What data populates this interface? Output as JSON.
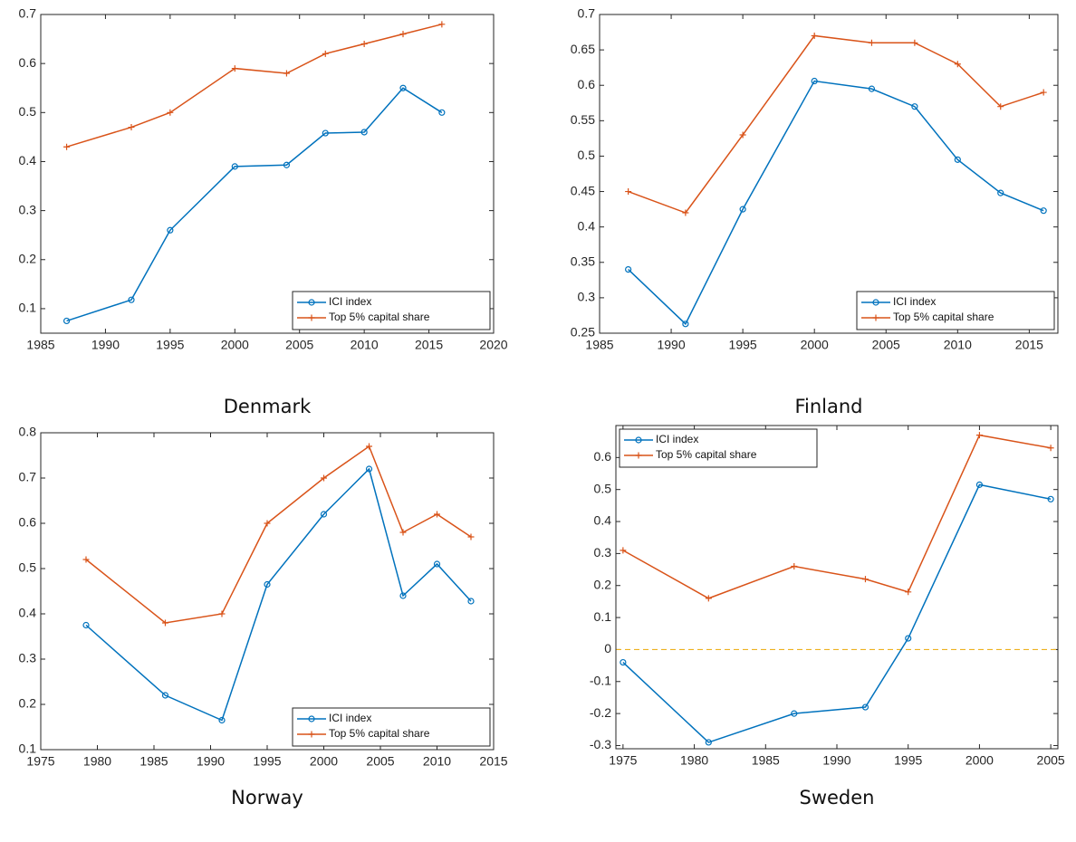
{
  "chart_data": [
    {
      "type": "line",
      "title": "Denmark",
      "xlim": [
        1985,
        2020
      ],
      "xticks": [
        1985,
        1990,
        1995,
        2000,
        2005,
        2010,
        2015,
        2020
      ],
      "ylim": [
        0.05,
        0.7
      ],
      "yticks": [
        0.1,
        0.2,
        0.3,
        0.4,
        0.5,
        0.6,
        0.7
      ],
      "legend": "southeast",
      "x": [
        1987,
        1992,
        1995,
        2000,
        2004,
        2007,
        2010,
        2013,
        2016
      ],
      "series": [
        {
          "name": "ICI index",
          "color": "#0072bd",
          "marker": "o",
          "values": [
            0.075,
            0.118,
            0.26,
            0.39,
            0.393,
            0.458,
            0.46,
            0.55,
            0.5
          ]
        },
        {
          "name": "Top 5% capital share",
          "color": "#d95319",
          "marker": "+",
          "values": [
            0.43,
            0.47,
            0.5,
            0.59,
            0.58,
            0.62,
            0.64,
            0.66,
            0.68
          ]
        }
      ]
    },
    {
      "type": "line",
      "title": "Finland",
      "xlim": [
        1985,
        2017
      ],
      "xticks": [
        1985,
        1990,
        1995,
        2000,
        2005,
        2010,
        2015
      ],
      "ylim": [
        0.25,
        0.7
      ],
      "yticks": [
        0.25,
        0.3,
        0.35,
        0.4,
        0.45,
        0.5,
        0.55,
        0.6,
        0.65,
        0.7
      ],
      "legend": "southeast",
      "x": [
        1987,
        1991,
        1995,
        2000,
        2004,
        2007,
        2010,
        2013,
        2016
      ],
      "series": [
        {
          "name": "ICI index",
          "color": "#0072bd",
          "marker": "o",
          "values": [
            0.34,
            0.263,
            0.425,
            0.606,
            0.595,
            0.57,
            0.495,
            0.448,
            0.423
          ]
        },
        {
          "name": "Top 5% capital share",
          "color": "#d95319",
          "marker": "+",
          "values": [
            0.45,
            0.42,
            0.53,
            0.67,
            0.66,
            0.66,
            0.63,
            0.57,
            0.59
          ]
        }
      ]
    },
    {
      "type": "line",
      "title": "Norway",
      "xlim": [
        1975,
        2015
      ],
      "xticks": [
        1975,
        1980,
        1985,
        1990,
        1995,
        2000,
        2005,
        2010,
        2015
      ],
      "ylim": [
        0.1,
        0.8
      ],
      "yticks": [
        0.1,
        0.2,
        0.3,
        0.4,
        0.5,
        0.6,
        0.7,
        0.8
      ],
      "legend": "southeast",
      "x": [
        1979,
        1986,
        1991,
        1995,
        2000,
        2004,
        2007,
        2010,
        2013
      ],
      "series": [
        {
          "name": "ICI index",
          "color": "#0072bd",
          "marker": "o",
          "values": [
            0.375,
            0.22,
            0.165,
            0.465,
            0.62,
            0.72,
            0.44,
            0.51,
            0.428
          ]
        },
        {
          "name": "Top 5% capital share",
          "color": "#d95319",
          "marker": "+",
          "values": [
            0.52,
            0.38,
            0.4,
            0.6,
            0.7,
            0.77,
            0.58,
            0.62,
            0.57
          ]
        }
      ]
    },
    {
      "type": "line",
      "title": "Sweden",
      "xlim": [
        1974.5,
        2005.5
      ],
      "xticks": [
        1975,
        1980,
        1985,
        1990,
        1995,
        2000,
        2005
      ],
      "ylim": [
        -0.31,
        0.7
      ],
      "yticks": [
        -0.3,
        -0.2,
        -0.1,
        0,
        0.1,
        0.2,
        0.3,
        0.4,
        0.5,
        0.6
      ],
      "legend": "northwest",
      "reference_line": 0,
      "reference_color": "#edb120",
      "x": [
        1975,
        1981,
        1987,
        1992,
        1995,
        2000,
        2005
      ],
      "series": [
        {
          "name": "ICI index",
          "color": "#0072bd",
          "marker": "o",
          "values": [
            -0.04,
            -0.29,
            -0.2,
            -0.18,
            0.035,
            0.515,
            0.47
          ]
        },
        {
          "name": "Top 5% capital share",
          "color": "#d95319",
          "marker": "+",
          "values": [
            0.31,
            0.16,
            0.26,
            0.22,
            0.18,
            0.67,
            0.63
          ]
        }
      ]
    }
  ]
}
